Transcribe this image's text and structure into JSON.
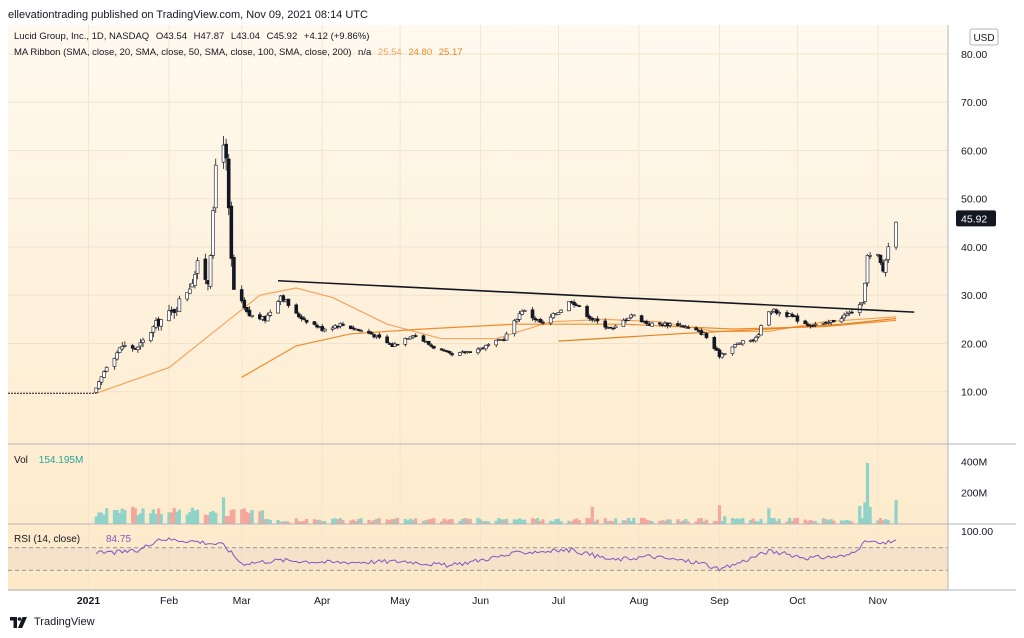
{
  "header": {
    "published": "ellevationtrading published on TradingView.com, Nov 09, 2021 08:14 UTC"
  },
  "legend": {
    "symbol": "Lucid Group, Inc., 1D, NASDAQ",
    "open": "O43.54",
    "high": "H47.87",
    "low": "L43.04",
    "close": "C45.92",
    "change": "+4.12 (+9.86%)",
    "ma_label": "MA Ribbon (SMA, close, 20, SMA, close, 50, SMA, close, 100, SMA, close, 200)",
    "ma_na": "n/a",
    "ma_values": [
      "25.54",
      "24.80",
      "25.17"
    ]
  },
  "currency_button": "USD",
  "last_price_label": "45.92",
  "volume_pane": {
    "label": "Vol",
    "value": "154.195M",
    "ticks": [
      "400M",
      "200M"
    ]
  },
  "rsi_pane": {
    "label": "RSI (14, close)",
    "value": "84.75",
    "ticks": [
      "100.00"
    ]
  },
  "footer": {
    "brand": "TradingView"
  },
  "colors": {
    "up": "#26a69a",
    "down": "#ef5350",
    "candle_body": "#131722",
    "ma_orange": "#f7a35c",
    "rsi_line": "#7e57c2",
    "pane_bg_top": "#fff9ef",
    "pane_bg_bottom": "#fde9c8"
  },
  "chart_data": {
    "type": "candlestick",
    "title": "Lucid Group, Inc., 1D, NASDAQ",
    "y_ticks": [
      "80.00",
      "70.00",
      "60.00",
      "50.00",
      "40.00",
      "30.00",
      "20.00",
      "10.00"
    ],
    "ylim": [
      0,
      86
    ],
    "x_ticks": [
      "2021",
      "Feb",
      "Mar",
      "Apr",
      "May",
      "Jun",
      "Jul",
      "Aug",
      "Sep",
      "Oct",
      "Nov"
    ],
    "price_path": [
      [
        "2020-12-01",
        9.7
      ],
      [
        "2020-12-31",
        9.7
      ],
      [
        "2021-01-04",
        10.5
      ],
      [
        "2021-01-08",
        15.5
      ],
      [
        "2021-01-14",
        19.5
      ],
      [
        "2021-01-20",
        19
      ],
      [
        "2021-01-27",
        24
      ],
      [
        "2021-02-03",
        27
      ],
      [
        "2021-02-09",
        32
      ],
      [
        "2021-02-12",
        36
      ],
      [
        "2021-02-16",
        33
      ],
      [
        "2021-02-18",
        46
      ],
      [
        "2021-02-19",
        57
      ],
      [
        "2021-02-22",
        63
      ],
      [
        "2021-02-23",
        57
      ],
      [
        "2021-02-25",
        37
      ],
      [
        "2021-02-26",
        31
      ],
      [
        "2021-03-03",
        26
      ],
      [
        "2021-03-10",
        25
      ],
      [
        "2021-03-16",
        30
      ],
      [
        "2021-03-22",
        26
      ],
      [
        "2021-04-01",
        23
      ],
      [
        "2021-04-08",
        24
      ],
      [
        "2021-04-20",
        22
      ],
      [
        "2021-04-28",
        19.5
      ],
      [
        "2021-05-06",
        22
      ],
      [
        "2021-05-13",
        19.5
      ],
      [
        "2021-05-21",
        17.5
      ],
      [
        "2021-06-01",
        19
      ],
      [
        "2021-06-10",
        21
      ],
      [
        "2021-06-17",
        27
      ],
      [
        "2021-06-25",
        24
      ],
      [
        "2021-07-06",
        29
      ],
      [
        "2021-07-14",
        25
      ],
      [
        "2021-07-22",
        23
      ],
      [
        "2021-07-29",
        26
      ],
      [
        "2021-08-05",
        24
      ],
      [
        "2021-08-16",
        24
      ],
      [
        "2021-08-26",
        22
      ],
      [
        "2021-09-01",
        17.5
      ],
      [
        "2021-09-08",
        20
      ],
      [
        "2021-09-15",
        21
      ],
      [
        "2021-09-20",
        27
      ],
      [
        "2021-09-27",
        26
      ],
      [
        "2021-10-05",
        24
      ],
      [
        "2021-10-12",
        24
      ],
      [
        "2021-10-20",
        26
      ],
      [
        "2021-10-26",
        28
      ],
      [
        "2021-10-28",
        38
      ],
      [
        "2021-11-01",
        38
      ],
      [
        "2021-11-03",
        35
      ],
      [
        "2021-11-05",
        40
      ],
      [
        "2021-11-08",
        45.92
      ]
    ],
    "trendline": [
      [
        "2021-03-15",
        33
      ],
      [
        "2021-11-15",
        26.5
      ]
    ],
    "ma_ribbon": [
      [
        [
          "2021-01-04",
          9.7
        ],
        [
          "2021-02-01",
          15
        ],
        [
          "2021-02-22",
          24
        ],
        [
          "2021-03-08",
          30
        ],
        [
          "2021-03-22",
          31.5
        ],
        [
          "2021-04-05",
          29.5
        ],
        [
          "2021-04-26",
          24
        ],
        [
          "2021-05-17",
          21
        ],
        [
          "2021-06-07",
          21
        ],
        [
          "2021-06-28",
          24.5
        ],
        [
          "2021-07-19",
          25
        ],
        [
          "2021-08-09",
          24.5
        ],
        [
          "2021-08-30",
          22.5
        ],
        [
          "2021-09-20",
          22.5
        ],
        [
          "2021-10-11",
          24.5
        ],
        [
          "2021-11-08",
          25.54
        ]
      ],
      [
        [
          "2021-03-01",
          13
        ],
        [
          "2021-03-22",
          19.5
        ],
        [
          "2021-04-12",
          22
        ],
        [
          "2021-05-10",
          23
        ],
        [
          "2021-06-14",
          24
        ],
        [
          "2021-07-26",
          24
        ],
        [
          "2021-09-06",
          23
        ],
        [
          "2021-10-11",
          23.5
        ],
        [
          "2021-11-08",
          24.8
        ]
      ],
      [
        [
          "2021-07-01",
          20.5
        ],
        [
          "2021-08-16",
          22
        ],
        [
          "2021-09-20",
          23
        ],
        [
          "2021-10-18",
          24
        ],
        [
          "2021-11-08",
          25.17
        ]
      ]
    ],
    "volume_peaks": [
      [
        "2021-02-22",
        170
      ],
      [
        "2021-07-14",
        110
      ],
      [
        "2021-09-01",
        120
      ],
      [
        "2021-09-20",
        100
      ],
      [
        "2021-10-28",
        390
      ],
      [
        "2021-11-08",
        154
      ]
    ],
    "rsi": [
      [
        "2021-01-04",
        60
      ],
      [
        "2021-01-20",
        64
      ],
      [
        "2021-01-28",
        86
      ],
      [
        "2021-02-10",
        82
      ],
      [
        "2021-02-22",
        75
      ],
      [
        "2021-03-01",
        42
      ],
      [
        "2021-03-16",
        48
      ],
      [
        "2021-04-05",
        44
      ],
      [
        "2021-05-03",
        46
      ],
      [
        "2021-05-20",
        38
      ],
      [
        "2021-06-17",
        62
      ],
      [
        "2021-07-06",
        66
      ],
      [
        "2021-07-22",
        48
      ],
      [
        "2021-08-05",
        55
      ],
      [
        "2021-08-26",
        42
      ],
      [
        "2021-09-01",
        30
      ],
      [
        "2021-09-20",
        64
      ],
      [
        "2021-10-05",
        52
      ],
      [
        "2021-10-20",
        55
      ],
      [
        "2021-10-28",
        82
      ],
      [
        "2021-11-03",
        76
      ],
      [
        "2021-11-08",
        84.75
      ]
    ],
    "rsi_levels": [
      70,
      30
    ]
  }
}
